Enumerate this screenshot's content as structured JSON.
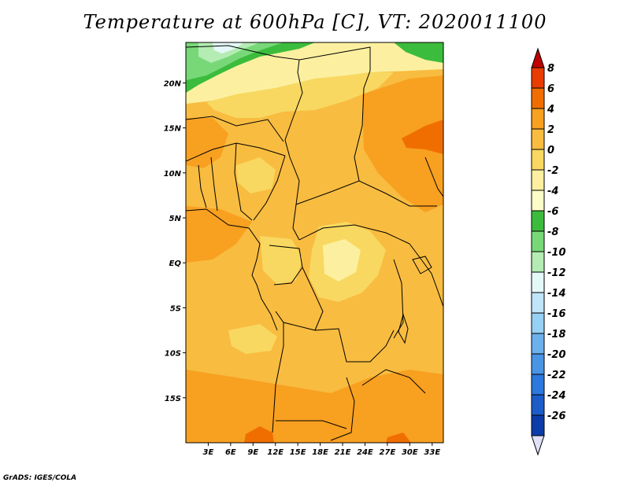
{
  "title": "Temperature at 600hPa [C], VT: 2020011100",
  "credit": "GrADS: IGES/COLA",
  "map": {
    "lat_labels": [
      "20N",
      "15N",
      "10N",
      "5N",
      "EQ",
      "5S",
      "10S",
      "15S"
    ],
    "lat_values": [
      20,
      15,
      10,
      5,
      0,
      -5,
      -10,
      -15
    ],
    "lon_labels": [
      "3E",
      "6E",
      "9E",
      "12E",
      "15E",
      "18E",
      "21E",
      "24E",
      "27E",
      "30E",
      "33E"
    ],
    "lon_values": [
      3,
      6,
      9,
      12,
      15,
      18,
      21,
      24,
      27,
      30,
      33
    ],
    "lat_range": [
      -20,
      24.5
    ],
    "lon_range": [
      0,
      34.5
    ]
  },
  "colorbar": {
    "labels": [
      "8",
      "6",
      "4",
      "2",
      "0",
      "-2",
      "-4",
      "-6",
      "-8",
      "-10",
      "-12",
      "-14",
      "-16",
      "-18",
      "-20",
      "-22",
      "-24",
      "-26"
    ],
    "colors": [
      "#c00000",
      "#e83c00",
      "#f06e00",
      "#f8a020",
      "#f8bc40",
      "#f8d860",
      "#fcf0a0",
      "#fcfcc8",
      "#3cbc3c",
      "#78d878",
      "#b4ecb4",
      "#e4f8f8",
      "#c0e4f8",
      "#96d0f4",
      "#6cb0ec",
      "#4a94e4",
      "#2c78dc",
      "#1c5cc8",
      "#0c3ca8",
      "#e0e0f8"
    ]
  },
  "regions": [
    {
      "name": "base-field",
      "color": "#f8bc40"
    },
    {
      "name": "green-zone",
      "color": "#3cbc3c"
    },
    {
      "name": "light-green-zone",
      "color": "#78d878"
    },
    {
      "name": "pale-green-zone",
      "color": "#b4ecb4"
    },
    {
      "name": "cold-core",
      "color": "#e4f8f8"
    },
    {
      "name": "pale-yellow-zone",
      "color": "#fcf0a0"
    },
    {
      "name": "light-orange-zone",
      "color": "#f8d860"
    },
    {
      "name": "orange-zone",
      "color": "#f8a020"
    },
    {
      "name": "dark-orange-zone",
      "color": "#f06e00"
    }
  ]
}
